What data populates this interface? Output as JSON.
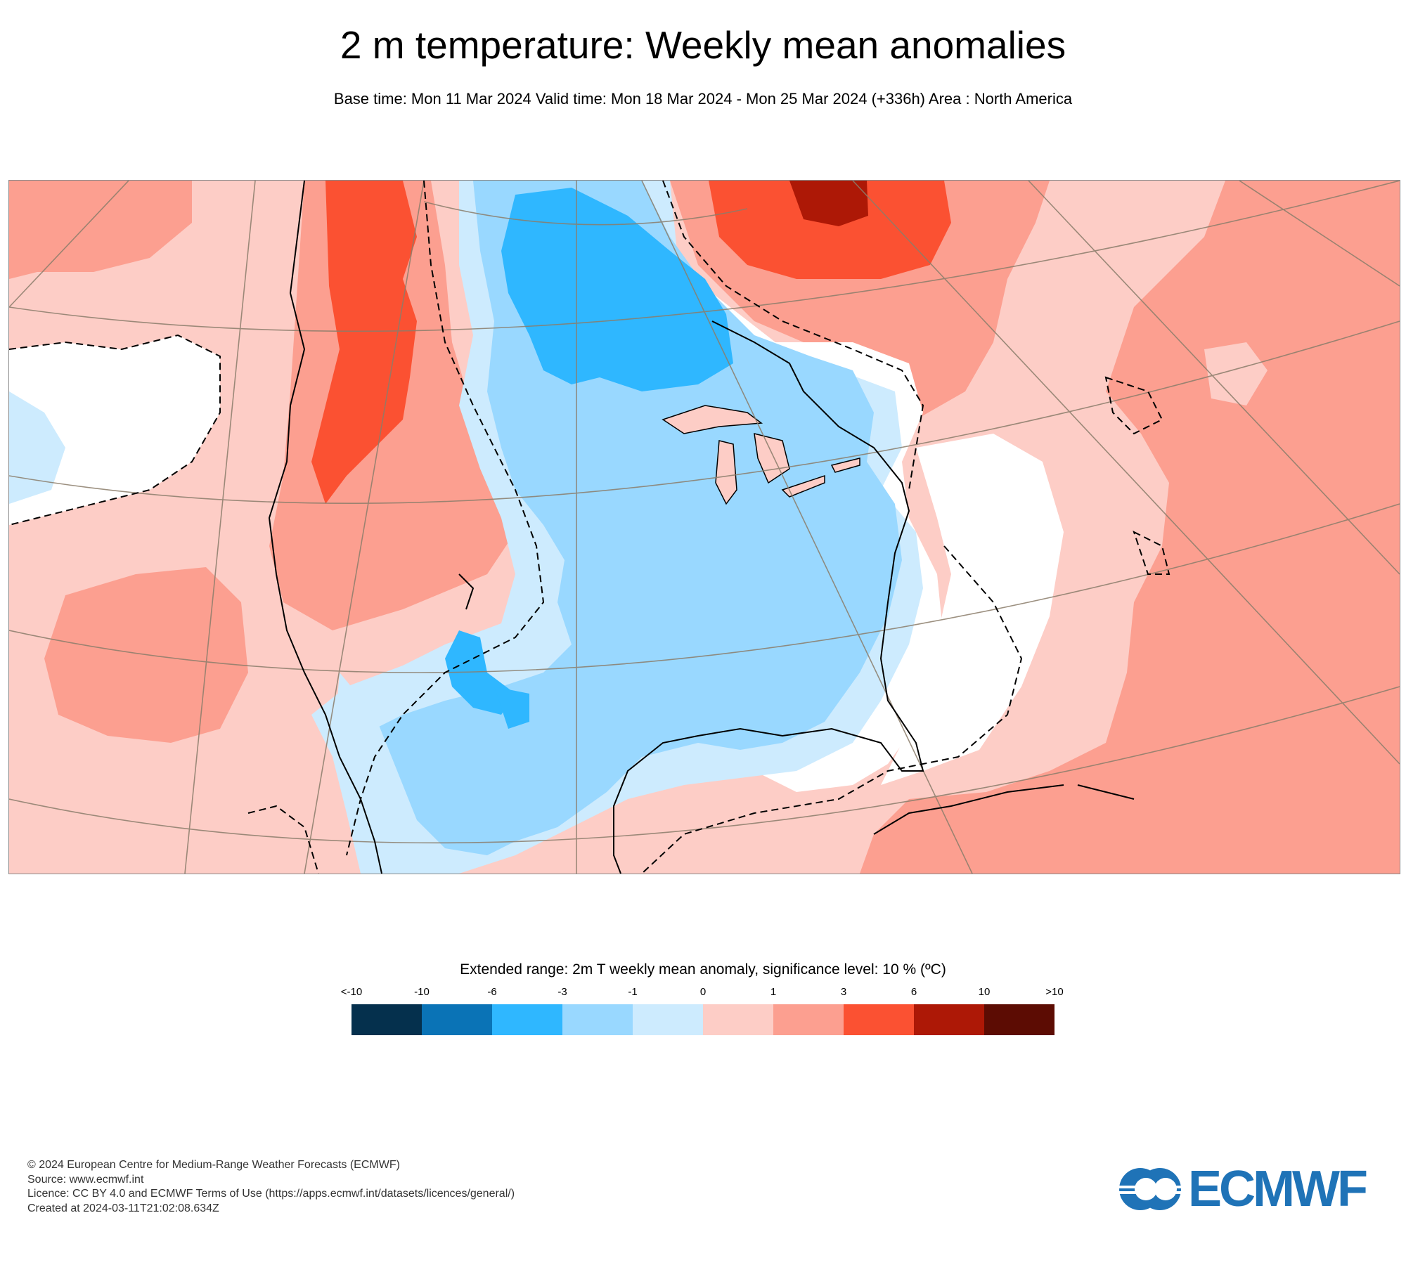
{
  "title": "2 m temperature: Weekly mean anomalies",
  "subtitle": "Base time: Mon 11 Mar 2024 Valid time: Mon 18 Mar 2024 - Mon 25 Mar 2024 (+336h) Area : North America",
  "legend": {
    "title": "Extended range: 2m T weekly mean anomaly, significance level: 10 % (ºC)",
    "ticks": [
      "<-10",
      "-10",
      "-6",
      "-3",
      "-1",
      "0",
      "1",
      "3",
      "6",
      "10",
      ">10"
    ],
    "colors": [
      "#05304d",
      "#0a73b6",
      "#2fb7ff",
      "#99d8ff",
      "#cdebfe",
      "#fdcdc6",
      "#fc9f90",
      "#fb5132",
      "#ad1806",
      "#5c0c03"
    ]
  },
  "footer": {
    "copyright": "© 2024 European Centre for Medium-Range Weather Forecasts (ECMWF)",
    "source": "Source: www.ecmwf.int",
    "licence": "Licence: CC BY 4.0 and ECMWF Terms of Use (https://apps.ecmwf.int/datasets/licences/general/)",
    "created": "Created at 2024-03-11T21:02:08.634Z"
  },
  "logo": {
    "text": "ECMWF",
    "color": "#1f73b7"
  }
}
